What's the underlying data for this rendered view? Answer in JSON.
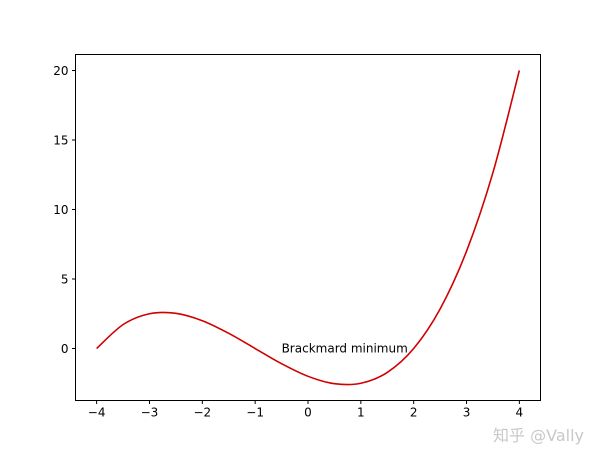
{
  "chart_data": {
    "type": "line",
    "title": "",
    "xlabel": "",
    "ylabel": "",
    "xlim": [
      -4.4,
      4.4
    ],
    "ylim": [
      -3.74,
      21.15
    ],
    "grid": false,
    "xticks": [
      -4,
      -3,
      -2,
      -1,
      0,
      1,
      2,
      3,
      4
    ],
    "xtick_labels": [
      "−4",
      "−3",
      "−2",
      "−1",
      "0",
      "1",
      "2",
      "3",
      "4"
    ],
    "yticks": [
      0,
      5,
      10,
      15,
      20
    ],
    "ytick_labels": [
      "0",
      "5",
      "10",
      "15",
      "20"
    ],
    "series": [
      {
        "color": "#d00000",
        "x": [
          -4,
          -3.5,
          -3,
          -2.5,
          -2,
          -1.5,
          -1,
          -0.5,
          0,
          0.5,
          1,
          1.5,
          2,
          2.5,
          3,
          3.5,
          4
        ],
        "y": [
          0,
          1.71875,
          2.5,
          2.53125,
          2,
          1.09375,
          0,
          -1.09375,
          -2,
          -2.53125,
          -2.5,
          -1.71875,
          0,
          2.84375,
          7,
          12.65625,
          20
        ]
      }
    ],
    "annotations": [
      {
        "text": "Brackmard minimum",
        "x": -0.5,
        "y": 0
      }
    ]
  },
  "watermark": "知乎 @Vally"
}
